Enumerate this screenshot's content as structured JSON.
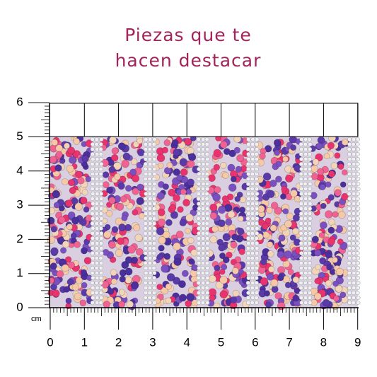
{
  "header": {
    "title_lines": [
      "Piezas que te",
      "hacen destacar"
    ]
  },
  "ruler": {
    "unit": "cm",
    "x_labels": [
      0,
      1,
      2,
      3,
      4,
      5,
      6,
      7,
      8,
      9
    ],
    "y_labels": [
      0,
      1,
      2,
      3,
      4,
      5,
      6
    ]
  }
}
